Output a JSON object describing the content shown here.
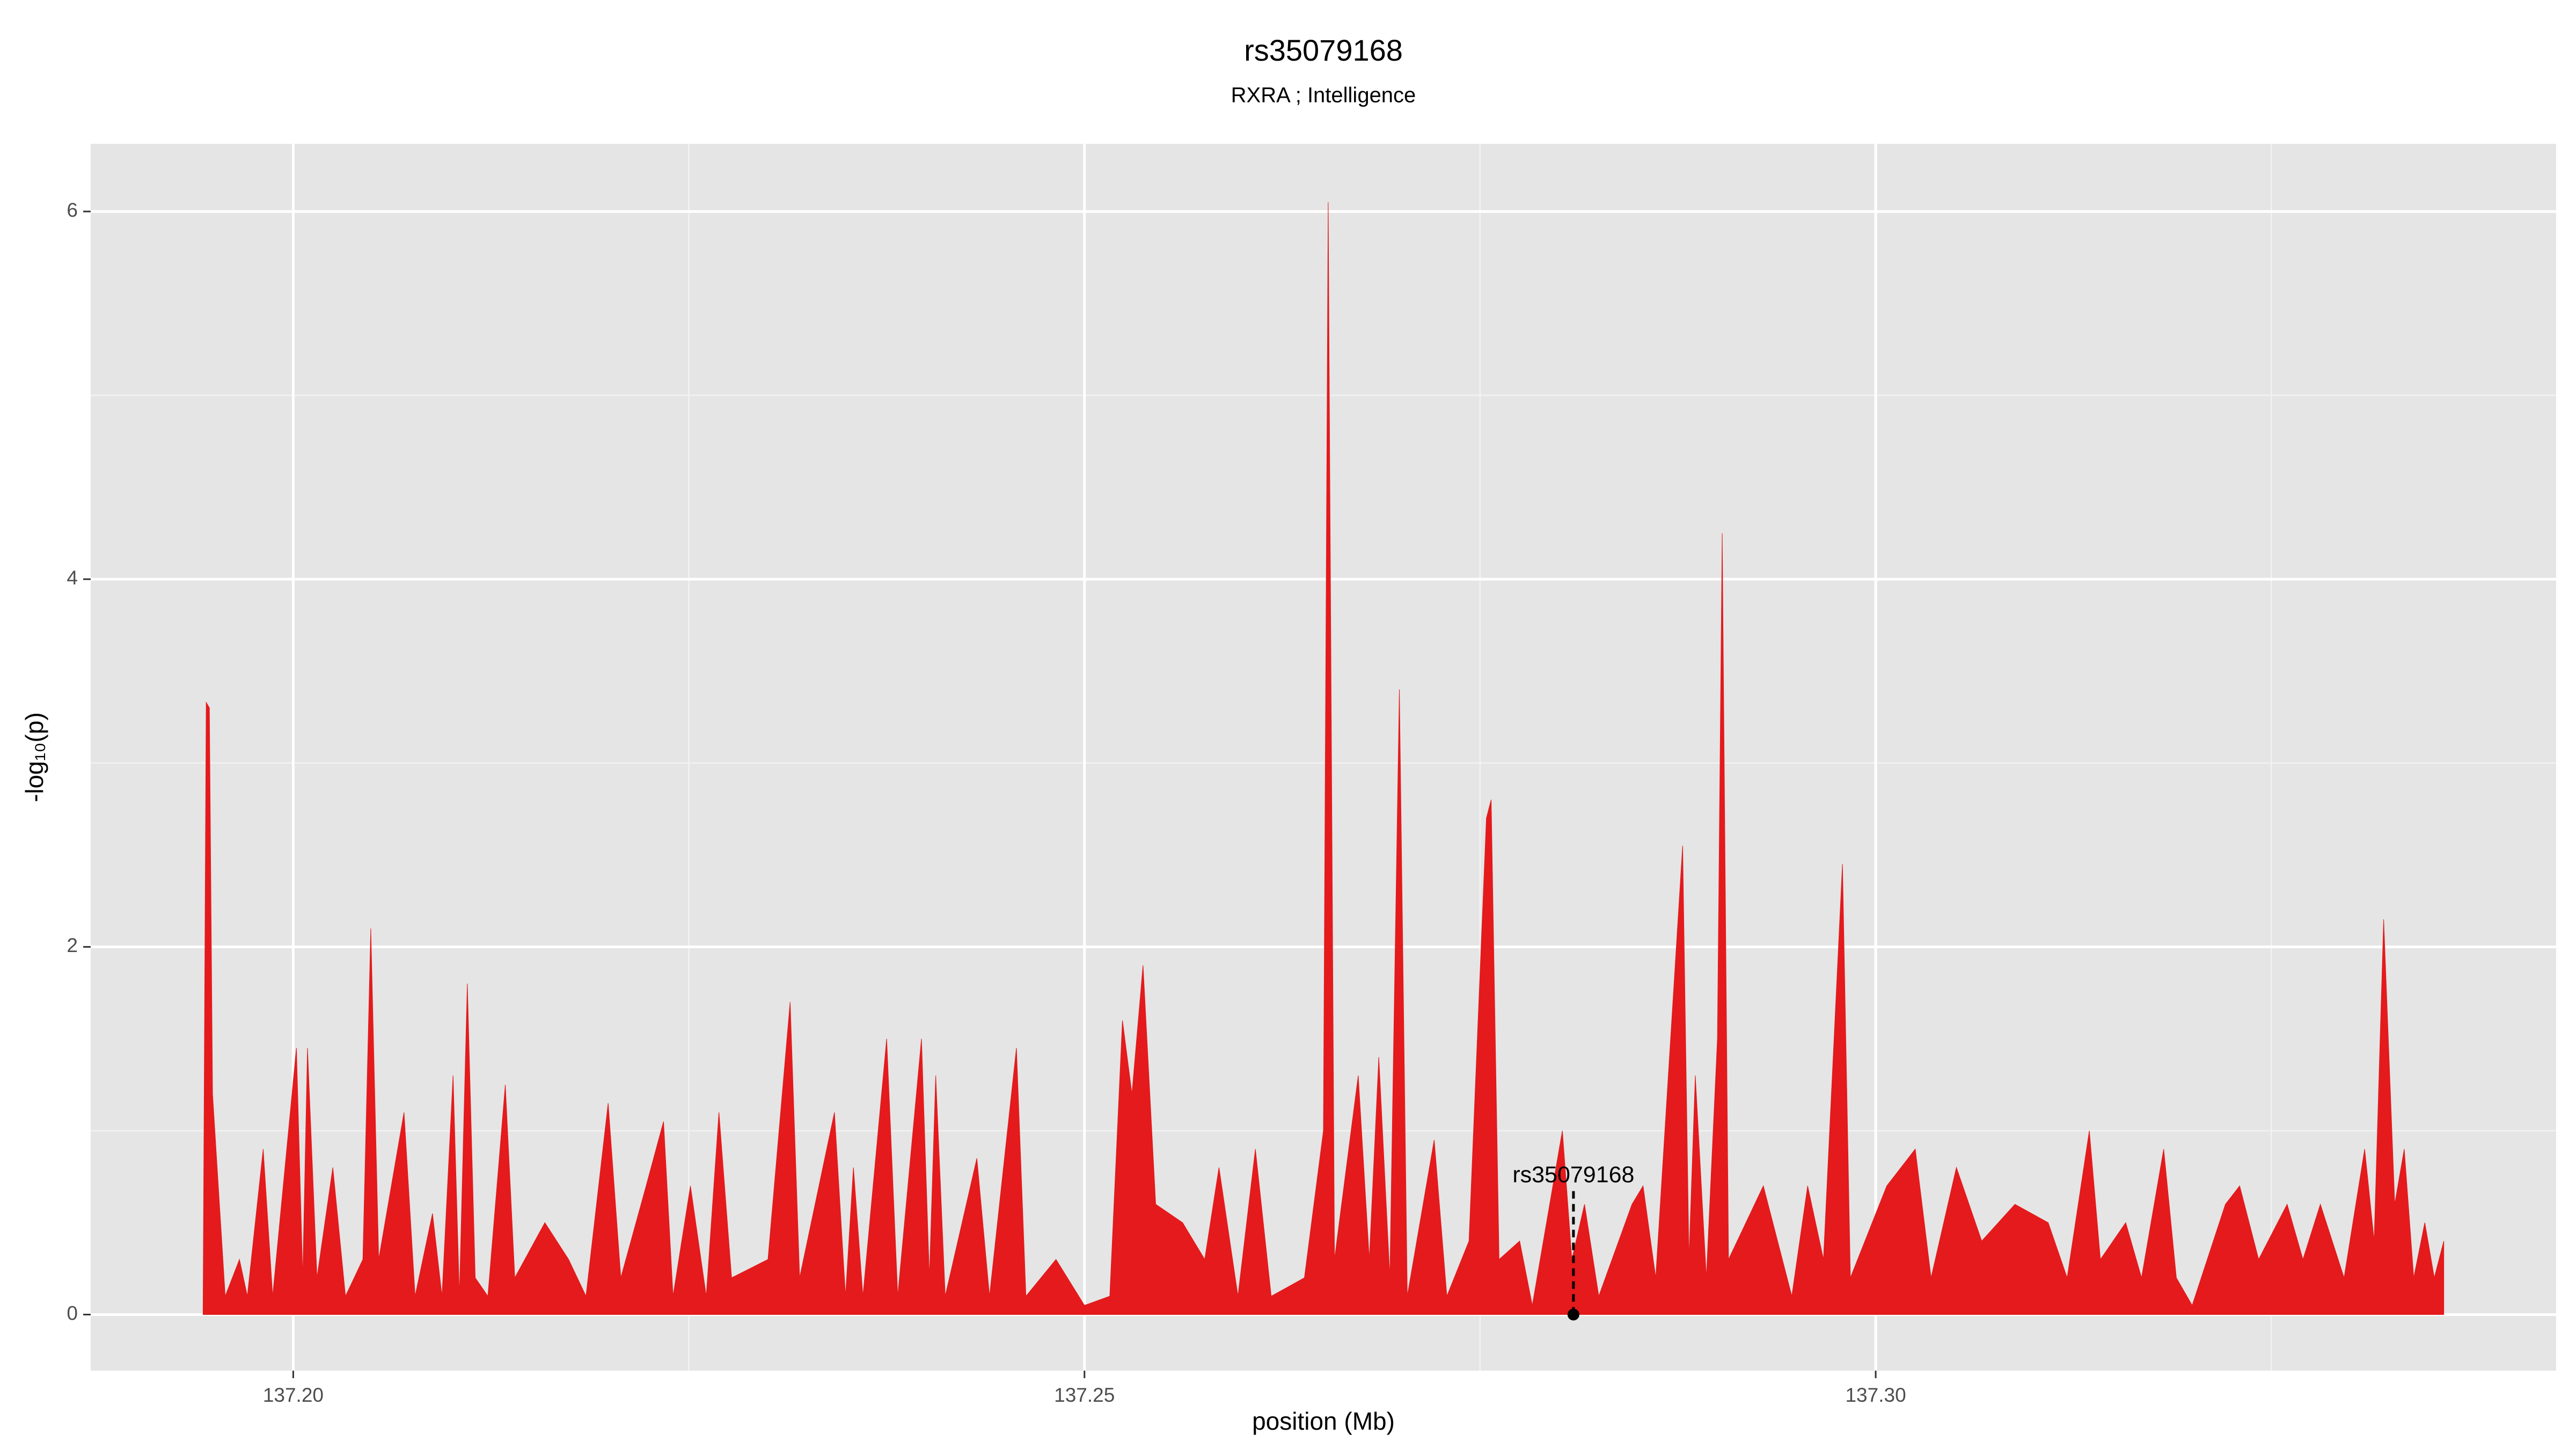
{
  "chart_data": {
    "type": "area",
    "title": "rs35079168",
    "subtitle": "RXRA ; Intelligence",
    "x_label": "position (Mb)",
    "y_label": "-log₁₀(p)",
    "color": "#e41a1c",
    "grid": true,
    "minor_grid": true,
    "xlim": [
      137.1872,
      137.343
    ],
    "ylim": [
      -0.305,
      6.368
    ],
    "xticks": [
      {
        "value": 137.2,
        "label": "137.20"
      },
      {
        "value": 137.25,
        "label": "137.25"
      },
      {
        "value": 137.3,
        "label": "137.30"
      }
    ],
    "yticks": [
      0,
      2,
      4,
      6
    ],
    "x": [
      137.1943,
      137.1945,
      137.1947,
      137.1949,
      137.1957,
      137.1966,
      137.1971,
      137.1981,
      137.1987,
      137.2002,
      137.2006,
      137.2009,
      137.2015,
      137.2025,
      137.2033,
      137.2044,
      137.2049,
      137.2054,
      137.207,
      137.2077,
      137.2088,
      137.2094,
      137.2101,
      137.2105,
      137.211,
      137.2115,
      137.2123,
      137.2134,
      137.214,
      137.2159,
      137.2174,
      137.2185,
      137.2199,
      137.2207,
      137.2223,
      137.2234,
      137.224,
      137.2251,
      137.2261,
      137.2269,
      137.2277,
      137.23,
      137.2314,
      137.232,
      137.2342,
      137.2349,
      137.2354,
      137.236,
      137.2375,
      137.2382,
      137.2397,
      137.2402,
      137.2406,
      137.2412,
      137.2432,
      137.244,
      137.2457,
      137.2463,
      137.2482,
      137.25,
      137.2516,
      137.2524,
      137.253,
      137.2537,
      137.2545,
      137.2562,
      137.2576,
      137.2585,
      137.2597,
      137.2608,
      137.2618,
      137.2639,
      137.2651,
      137.2654,
      137.2658,
      137.2673,
      137.268,
      137.2686,
      137.2693,
      137.2699,
      137.2704,
      137.2721,
      137.2729,
      137.2743,
      137.2754,
      137.2757,
      137.2762,
      137.2775,
      137.2783,
      137.2802,
      137.2808,
      137.2816,
      137.2825,
      137.2846,
      137.2853,
      137.2861,
      137.2878,
      137.2882,
      137.2886,
      137.2893,
      137.29,
      137.2903,
      137.2907,
      137.2929,
      137.2947,
      137.2957,
      137.2967,
      137.2979,
      137.2984,
      137.3007,
      137.3025,
      137.3035,
      137.3051,
      137.3067,
      137.3088,
      137.3109,
      137.3121,
      137.3135,
      137.3142,
      137.3158,
      137.3168,
      137.3182,
      137.319,
      137.32,
      137.3221,
      137.323,
      137.3242,
      137.326,
      137.327,
      137.3281,
      137.3296,
      137.3309,
      137.3315,
      137.3321,
      137.3328,
      137.3334,
      137.334,
      137.3347,
      137.3353,
      137.3359
    ],
    "values": [
      0,
      3.33,
      3.3,
      1.2,
      0.1,
      0.3,
      0.1,
      0.9,
      0.1,
      1.45,
      0.2,
      1.45,
      0.2,
      0.8,
      0.1,
      0.3,
      2.1,
      0.3,
      1.1,
      0.1,
      0.55,
      0.1,
      1.3,
      0.1,
      1.8,
      0.2,
      0.1,
      1.25,
      0.2,
      0.5,
      0.3,
      0.1,
      1.15,
      0.2,
      0.7,
      1.05,
      0.1,
      0.7,
      0.1,
      1.1,
      0.2,
      0.3,
      1.7,
      0.2,
      1.1,
      0.1,
      0.8,
      0.1,
      1.5,
      0.1,
      1.5,
      0.2,
      1.3,
      0.1,
      0.85,
      0.1,
      1.45,
      0.1,
      0.3,
      0.05,
      0.1,
      1.6,
      1.2,
      1.9,
      0.6,
      0.5,
      0.3,
      0.8,
      0.1,
      0.9,
      0.1,
      0.2,
      1.0,
      6.05,
      0.3,
      1.3,
      0.3,
      1.4,
      0.2,
      3.4,
      0.1,
      0.95,
      0.1,
      0.4,
      2.7,
      2.8,
      0.3,
      0.4,
      0.05,
      1.0,
      0.3,
      0.6,
      0.1,
      0.6,
      0.7,
      0.2,
      2.55,
      0.3,
      1.3,
      0.2,
      1.5,
      4.25,
      0.3,
      0.7,
      0.1,
      0.7,
      0.3,
      2.45,
      0.2,
      0.7,
      0.9,
      0.2,
      0.8,
      0.4,
      0.6,
      0.5,
      0.2,
      1.0,
      0.3,
      0.5,
      0.2,
      0.9,
      0.2,
      0.05,
      0.6,
      0.7,
      0.3,
      0.6,
      0.3,
      0.6,
      0.2,
      0.9,
      0.4,
      2.15,
      0.6,
      0.9,
      0.2,
      0.5,
      0.2,
      0.4
    ],
    "annotation": {
      "label": "rs35079168",
      "x": 137.2809,
      "y": 0
    }
  }
}
